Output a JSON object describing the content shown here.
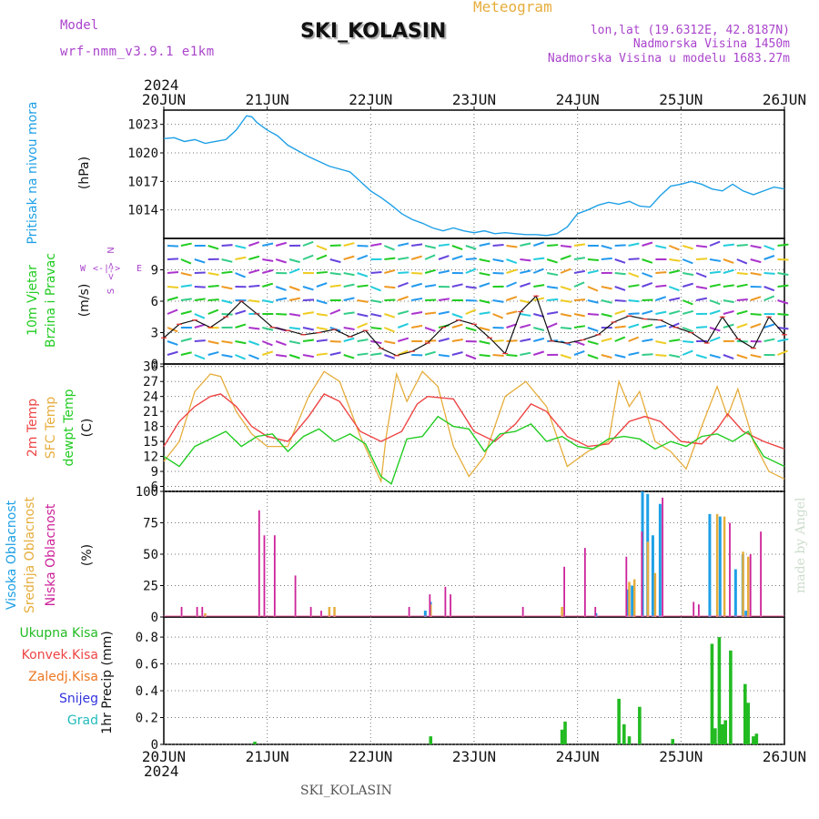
{
  "header": {
    "model_label": "Model",
    "model_value": "wrf-nmm_v3.9.1 e1km",
    "station": "SKI_KOLASIN",
    "meteogram": "Meteogram",
    "coords": "lon,lat (19.6312E, 42.8187N)",
    "altitude": "Nadmorska Visina 1450m",
    "model_altitude": "Nadmorska Visina u modelu 1683.27m",
    "year_top": "2024",
    "year_bottom": "2024",
    "footer_station": "SKI_KOLASIN",
    "credit": "made by Angel"
  },
  "colors": {
    "pressure": "#1ea0e6",
    "temp2m": "#ee4444",
    "sfc": "#e6ad3c",
    "dewpt": "#22cc22",
    "high_cloud": "#1ea0e6",
    "mid_cloud": "#e6ad3c",
    "low_cloud": "#cc2299",
    "total_precip": "#22bb22",
    "conv_precip": "#ee4444",
    "frozen_precip": "#ee7722",
    "snow": "#3333dd",
    "hail": "#22bbbb",
    "label_purple": "#aa44cc"
  },
  "chart_data": {
    "type": "line",
    "x_ticks": [
      "20JUN",
      "21JUN",
      "22JUN",
      "23JUN",
      "24JUN",
      "25JUN",
      "26JUN"
    ],
    "grid": true,
    "panels": [
      {
        "name": "pressure",
        "labels": [
          "Pritisak na nivou mora",
          "(hPa)"
        ],
        "ylim": [
          1011,
          1024.5
        ],
        "yticks": [
          "1023",
          "1020",
          "1017",
          "1014"
        ],
        "ytick_values": [
          1023,
          1020,
          1017,
          1014
        ],
        "series": [
          {
            "x": [
              0,
              0.1,
              0.2,
              0.3,
              0.4,
              0.5,
              0.6,
              0.7,
              0.8,
              0.85,
              0.9,
              1.0,
              1.1,
              1.2,
              1.3,
              1.4,
              1.5,
              1.6,
              1.7,
              1.8,
              1.9,
              2.0,
              2.1,
              2.2,
              2.3,
              2.4,
              2.5,
              2.6,
              2.7,
              2.8,
              2.9,
              3.0,
              3.1,
              3.2,
              3.3,
              3.4,
              3.5,
              3.6,
              3.7,
              3.8,
              3.9,
              4.0,
              4.1,
              4.2,
              4.3,
              4.4,
              4.5,
              4.6,
              4.7,
              4.8,
              4.9,
              5.0,
              5.1,
              5.2,
              5.3,
              5.4,
              5.5,
              5.6,
              5.7,
              5.8,
              5.9,
              6.0
            ],
            "values": [
              1021.5,
              1021.6,
              1021.2,
              1021.4,
              1021.0,
              1021.2,
              1021.4,
              1022.4,
              1023.9,
              1023.8,
              1023.2,
              1022.4,
              1021.8,
              1020.8,
              1020.2,
              1019.6,
              1019.1,
              1018.6,
              1018.3,
              1018.0,
              1017.0,
              1016.0,
              1015.3,
              1014.5,
              1013.6,
              1013.0,
              1012.6,
              1012.1,
              1011.8,
              1012.1,
              1011.8,
              1011.6,
              1011.8,
              1011.5,
              1011.6,
              1011.5,
              1011.4,
              1011.4,
              1011.3,
              1011.5,
              1012.2,
              1013.6,
              1014.0,
              1014.5,
              1014.8,
              1014.6,
              1014.9,
              1014.4,
              1014.3,
              1015.5,
              1016.5,
              1016.7,
              1017.0,
              1016.7,
              1016.2,
              1016.0,
              1016.7,
              1016.0,
              1015.6,
              1016.0,
              1016.4,
              1016.2
            ]
          }
        ]
      },
      {
        "name": "wind",
        "labels": [
          "10m Vjetar",
          "Brzina i Pravac",
          "(m/s)"
        ],
        "legend": [
          "N",
          "W",
          "<-|->",
          "E",
          "<->",
          "S"
        ],
        "ylim": [
          0,
          12
        ],
        "yticks": [
          "9",
          "6",
          "3",
          "0"
        ],
        "ytick_values": [
          9,
          6,
          3,
          0
        ],
        "series": [
          {
            "name": "speed",
            "x": [
              0,
              0.15,
              0.3,
              0.45,
              0.6,
              0.75,
              0.9,
              1.05,
              1.2,
              1.35,
              1.5,
              1.65,
              1.8,
              1.95,
              2.1,
              2.25,
              2.4,
              2.55,
              2.7,
              2.85,
              3.0,
              3.15,
              3.3,
              3.45,
              3.6,
              3.75,
              3.9,
              4.05,
              4.2,
              4.35,
              4.5,
              4.65,
              4.8,
              4.95,
              5.1,
              5.25,
              5.4,
              5.55,
              5.7,
              5.85,
              6.0
            ],
            "values": [
              2.5,
              3.8,
              4.2,
              3.5,
              4.5,
              6.0,
              4.8,
              3.5,
              3.2,
              2.8,
              3.0,
              3.3,
              2.6,
              3.2,
              1.5,
              0.8,
              1.2,
              2.0,
              3.5,
              4.2,
              3.8,
              2.5,
              1.0,
              5.0,
              6.5,
              2.2,
              2.0,
              2.3,
              2.8,
              4.0,
              4.6,
              4.3,
              4.2,
              3.5,
              3.0,
              2.0,
              4.5,
              2.4,
              1.5,
              4.5,
              2.8
            ]
          }
        ]
      },
      {
        "name": "temperature",
        "labels": [
          "2m Temp",
          "SFC Temp",
          "dewpt Temp",
          "(C)"
        ],
        "ylim": [
          5,
          30.5
        ],
        "yticks": [
          "30",
          "27",
          "24",
          "21",
          "18",
          "15",
          "12",
          "9",
          "6"
        ],
        "ytick_values": [
          30,
          27,
          24,
          21,
          18,
          15,
          12,
          9,
          6
        ],
        "series": [
          {
            "name": "2m Temp",
            "x": [
              0,
              0.15,
              0.3,
              0.45,
              0.55,
              0.7,
              0.85,
              1.0,
              1.2,
              1.4,
              1.55,
              1.7,
              1.9,
              2.1,
              2.3,
              2.45,
              2.55,
              2.8,
              3.0,
              3.2,
              3.4,
              3.55,
              3.7,
              3.9,
              4.1,
              4.3,
              4.5,
              4.65,
              4.8,
              5.0,
              5.2,
              5.35,
              5.45,
              5.6,
              5.8,
              6.0
            ],
            "values": [
              14.0,
              19.0,
              22.0,
              24.0,
              24.5,
              22.0,
              18.0,
              16.0,
              15.0,
              20.0,
              24.5,
              23.0,
              17.0,
              15.0,
              17.0,
              22.5,
              24.0,
              23.5,
              17.0,
              15.0,
              18.5,
              22.5,
              21.0,
              16.0,
              14.0,
              14.5,
              19.0,
              20.0,
              19.0,
              15.0,
              14.5,
              17.5,
              20.5,
              17.0,
              15.0,
              13.5
            ]
          },
          {
            "name": "SFC Temp",
            "x": [
              0,
              0.15,
              0.3,
              0.45,
              0.55,
              0.7,
              0.85,
              1.0,
              1.2,
              1.4,
              1.55,
              1.7,
              1.9,
              2.1,
              2.15,
              2.25,
              2.35,
              2.5,
              2.65,
              2.8,
              2.95,
              3.1,
              3.3,
              3.5,
              3.7,
              3.9,
              4.1,
              4.3,
              4.4,
              4.5,
              4.6,
              4.75,
              4.9,
              5.05,
              5.2,
              5.35,
              5.45,
              5.55,
              5.7,
              5.85,
              6.0
            ],
            "values": [
              11.0,
              15.0,
              25.0,
              28.5,
              28.0,
              21.0,
              16.5,
              14.0,
              14.0,
              24.0,
              29.0,
              27.0,
              16.0,
              7.0,
              16.0,
              28.5,
              23.0,
              29.0,
              26.0,
              14.0,
              8.0,
              12.0,
              24.0,
              27.0,
              22.0,
              10.0,
              13.0,
              15.0,
              27.0,
              22.0,
              25.0,
              15.0,
              13.0,
              9.5,
              18.0,
              26.0,
              20.0,
              25.5,
              15.0,
              9.0,
              7.5
            ]
          },
          {
            "name": "dewpt Temp",
            "x": [
              0,
              0.15,
              0.3,
              0.45,
              0.6,
              0.75,
              0.9,
              1.05,
              1.2,
              1.35,
              1.5,
              1.65,
              1.8,
              1.95,
              2.1,
              2.2,
              2.35,
              2.5,
              2.65,
              2.8,
              2.95,
              3.1,
              3.25,
              3.4,
              3.55,
              3.7,
              3.85,
              4.0,
              4.15,
              4.3,
              4.45,
              4.6,
              4.75,
              4.9,
              5.05,
              5.2,
              5.35,
              5.5,
              5.65,
              5.8,
              6.0
            ],
            "values": [
              12.0,
              10.0,
              14.0,
              15.5,
              17.0,
              14.0,
              16.0,
              16.5,
              13.0,
              16.0,
              17.5,
              15.0,
              16.5,
              14.5,
              8.0,
              6.5,
              15.5,
              16.0,
              20.0,
              18.0,
              17.5,
              13.0,
              16.5,
              17.0,
              18.5,
              15.0,
              16.0,
              14.0,
              13.5,
              15.5,
              16.0,
              15.5,
              13.5,
              15.0,
              14.0,
              16.0,
              16.5,
              15.0,
              17.0,
              12.0,
              10.0
            ]
          }
        ]
      },
      {
        "name": "cloud",
        "labels": [
          "Visoka Oblacnost",
          "Srednja Oblacnost",
          "Niska Oblacnost",
          "(%)"
        ],
        "ylim": [
          0,
          100
        ],
        "yticks": [
          "100",
          "75",
          "50",
          "25",
          "0"
        ],
        "ytick_values": [
          100,
          75,
          50,
          25,
          0
        ],
        "series": [
          {
            "name": "Visoka Oblacnost",
            "x": [
              2.55,
              2.6,
              4.2,
              4.5,
              4.55,
              4.65,
              4.7,
              4.75,
              4.82,
              5.3,
              5.4,
              5.55,
              5.62,
              5.65
            ],
            "values": [
              5,
              12,
              3,
              22,
              25,
              100,
              98,
              65,
              90,
              82,
              80,
              38,
              50,
              5
            ]
          },
          {
            "name": "Srednja Oblacnost",
            "x": [
              0.4,
              1.6,
              1.65,
              2.58,
              3.85,
              4.5,
              4.55,
              4.68,
              4.75,
              5.35,
              5.42,
              5.6,
              5.65
            ],
            "values": [
              3,
              8,
              8,
              10,
              8,
              28,
              30,
              60,
              35,
              82,
              80,
              52,
              48
            ]
          },
          {
            "name": "Niska Oblacnost",
            "x": [
              0.15,
              0.3,
              0.35,
              0.9,
              0.95,
              1.05,
              1.25,
              1.4,
              1.5,
              2.35,
              2.55,
              2.7,
              2.75,
              3.45,
              3.85,
              4.05,
              4.15,
              4.45,
              4.6,
              4.8,
              5.1,
              5.15,
              5.45,
              5.65,
              5.75
            ],
            "values": [
              8,
              8,
              8,
              85,
              65,
              65,
              33,
              8,
              5,
              8,
              18,
              24,
              18,
              8,
              40,
              55,
              8,
              48,
              68,
              95,
              12,
              10,
              75,
              50,
              68
            ]
          }
        ]
      },
      {
        "name": "precip",
        "labels": [
          "Ukupna Kisa",
          "Konvek.Kisa",
          "Zaledj.Kisa",
          "Snijeg",
          "Grad",
          "1hr Precip (mm)"
        ],
        "ylim": [
          0,
          0.95
        ],
        "yticks": [
          "0.8",
          "0.6",
          "0.4",
          "0.2",
          "0"
        ],
        "ytick_values": [
          0.8,
          0.6,
          0.4,
          0.2,
          0
        ],
        "series": [
          {
            "name": "Ukupna Kisa",
            "x": [
              0.88,
              2.58,
              3.85,
              3.88,
              4.4,
              4.45,
              4.5,
              4.6,
              4.92,
              5.3,
              5.33,
              5.37,
              5.4,
              5.43,
              5.48,
              5.62,
              5.65,
              5.7,
              5.73
            ],
            "values": [
              0.02,
              0.06,
              0.11,
              0.17,
              0.34,
              0.15,
              0.06,
              0.28,
              0.04,
              0.75,
              0.12,
              0.8,
              0.15,
              0.18,
              0.7,
              0.45,
              0.31,
              0.06,
              0.08
            ]
          }
        ]
      }
    ]
  }
}
